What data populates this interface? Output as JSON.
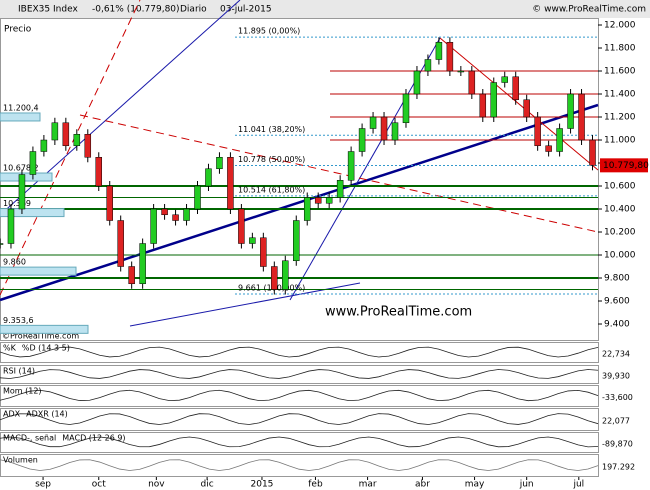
{
  "header": {
    "title": "IBEX35 Index",
    "change": "-0,61% (10.779,80)",
    "period": "Diario",
    "date": "03-jul-2015",
    "site": "© www.ProRealTime.com"
  },
  "chart_data": {
    "type": "candlestick",
    "panel_label": "Precio",
    "watermark": "www.ProRealTime.com",
    "copyright": "©ProRealTime.com",
    "x": [
      0,
      4,
      8,
      12,
      16,
      20,
      24,
      28,
      32,
      36,
      40,
      44,
      48,
      52,
      56,
      60,
      64,
      68,
      72,
      76,
      80,
      84,
      88,
      92,
      96,
      100,
      104,
      108,
      112,
      116,
      120,
      124,
      128,
      132,
      136,
      140,
      144,
      148,
      152,
      156,
      160,
      164,
      168,
      172,
      176,
      180,
      184,
      188,
      192,
      196,
      200,
      204,
      208,
      212,
      216
    ],
    "values": [
      10100,
      10400,
      10700,
      10900,
      11000,
      11150,
      10950,
      11050,
      10850,
      10600,
      10300,
      9900,
      9750,
      10100,
      10400,
      10350,
      10300,
      10400,
      10600,
      10750,
      10850,
      10400,
      10100,
      10150,
      9900,
      9700,
      9950,
      10300,
      10500,
      10450,
      10500,
      10650,
      10900,
      11100,
      11200,
      11000,
      11150,
      11400,
      11600,
      11700,
      11850,
      11600,
      11600,
      11400,
      11200,
      11500,
      11550,
      11350,
      11200,
      10950,
      10900,
      11100,
      11400,
      11000,
      10780
    ],
    "xlim": [
      0,
      218
    ],
    "xticks": [
      {
        "value": 15.7,
        "label": "sep"
      },
      {
        "value": 36,
        "label": "oct"
      },
      {
        "value": 57,
        "label": "nov"
      },
      {
        "value": 75.5,
        "label": "dic"
      },
      {
        "value": 95.5,
        "label": "2015"
      },
      {
        "value": 115,
        "label": "feb"
      },
      {
        "value": 134,
        "label": "mar"
      },
      {
        "value": 154,
        "label": "abr"
      },
      {
        "value": 173,
        "label": "may"
      },
      {
        "value": 192,
        "label": "jun"
      },
      {
        "value": 211,
        "label": "jul"
      }
    ],
    "ylim": [
      9261,
      12061
    ],
    "yticks": [
      {
        "value": 9400,
        "label": "9.400"
      },
      {
        "value": 9600,
        "label": "9.600"
      },
      {
        "value": 9800,
        "label": "9.800"
      },
      {
        "value": 10000,
        "label": "10.000"
      },
      {
        "value": 10200,
        "label": "10.200"
      },
      {
        "value": 10400,
        "label": "10.400"
      },
      {
        "value": 10600,
        "label": "10.600"
      },
      {
        "value": 10800,
        "label": "10.800"
      },
      {
        "value": 11000,
        "label": "11.000"
      },
      {
        "value": 11200,
        "label": "11.200"
      },
      {
        "value": 11400,
        "label": "11.400"
      },
      {
        "value": 11600,
        "label": "11.600"
      },
      {
        "value": 11800,
        "label": "11.800"
      },
      {
        "value": 12000,
        "label": "12.000"
      }
    ],
    "resistance": [
      11600,
      11400,
      11200,
      11000
    ],
    "support": [
      10600,
      10500,
      10400,
      10000,
      9800,
      9700
    ],
    "fib": [
      {
        "value": 11895,
        "label": "11.895 (0,00%)"
      },
      {
        "value": 11041,
        "label": "11.041 (38,20%)"
      },
      {
        "value": 10778,
        "label": "10.778 (50,00%)"
      },
      {
        "value": 10514,
        "label": "10.514 (61,80%)"
      },
      {
        "value": 9661,
        "label": "9.661 (100,00%)"
      }
    ],
    "profile": [
      {
        "value": 11200.4,
        "label": "11.200,4"
      },
      {
        "value": 10678.2,
        "label": "10.678,2"
      },
      {
        "value": 10369,
        "label": "10.369"
      },
      {
        "value": 9860,
        "label": "9.860"
      },
      {
        "value": 9353.6,
        "label": "9.353,6"
      }
    ],
    "last": {
      "value": 10779.8,
      "label": "10.779,80"
    }
  },
  "indicators": [
    {
      "label": "%K",
      "label2": "%D (14 3 5)",
      "value": "22,734"
    },
    {
      "label": "RSI (14)",
      "value": "39,930"
    },
    {
      "label": "Mom (12)",
      "value": "-33,600"
    },
    {
      "label": "ADX",
      "label2": "ADXR (14)",
      "value": "22,077"
    },
    {
      "label": "MACD-, señal",
      "label2": "MACD (12 26 9)",
      "value": "-89,870"
    },
    {
      "label": "Volumen",
      "value": "197.292"
    }
  ]
}
